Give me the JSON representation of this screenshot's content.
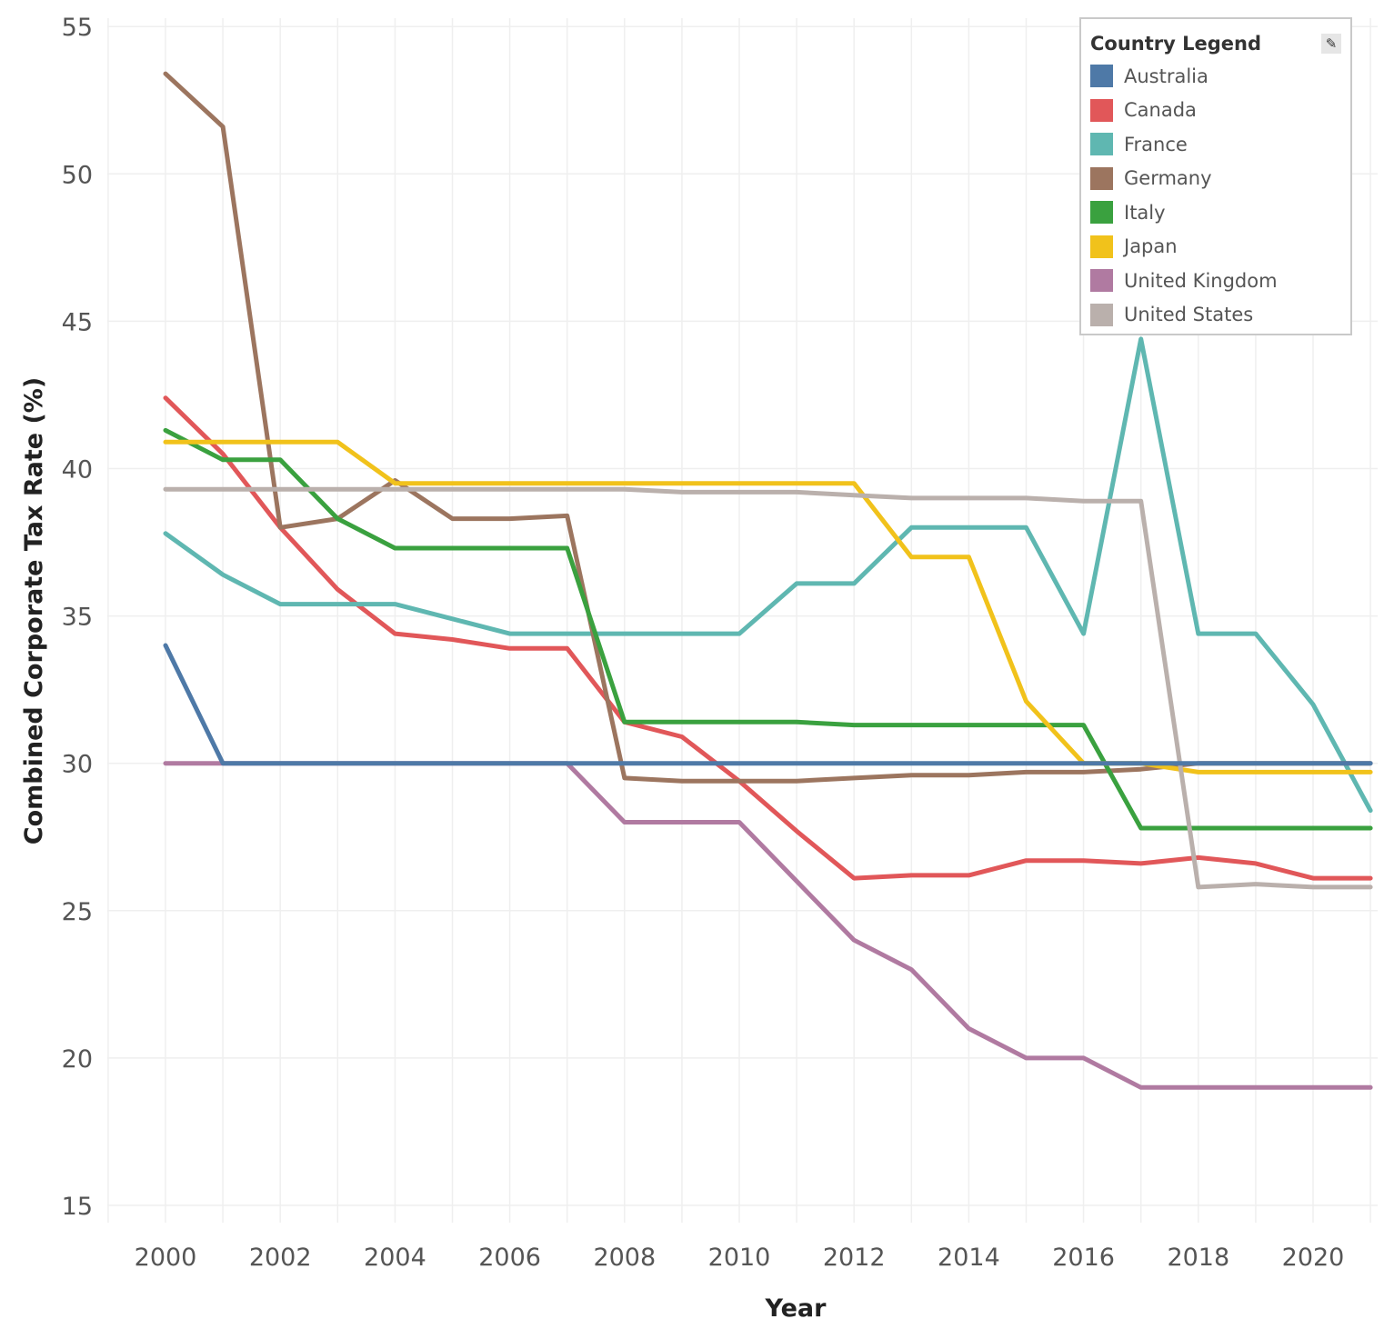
{
  "legend": {
    "title": "Country Legend",
    "edit_icon": "pencil-icon"
  },
  "chart_data": {
    "type": "line",
    "title": "",
    "xlabel": "Year",
    "ylabel": "Combined Corporate Tax Rate (%)",
    "xlim": [
      1999,
      2021
    ],
    "ylim": [
      15,
      55
    ],
    "xticks": [
      2000,
      2002,
      2004,
      2006,
      2008,
      2010,
      2012,
      2014,
      2016,
      2018,
      2020
    ],
    "yticks": [
      15,
      20,
      25,
      30,
      35,
      40,
      45,
      50,
      55
    ],
    "grid": true,
    "legend_position": "top-right",
    "x": [
      2000,
      2001,
      2002,
      2003,
      2004,
      2005,
      2006,
      2007,
      2008,
      2009,
      2010,
      2011,
      2012,
      2013,
      2014,
      2015,
      2016,
      2017,
      2018,
      2019,
      2020,
      2021
    ],
    "series": [
      {
        "name": "Australia",
        "color": "#4e79a7",
        "values": [
          34,
          30,
          30,
          30,
          30,
          30,
          30,
          30,
          30,
          30,
          30,
          30,
          30,
          30,
          30,
          30,
          30,
          30,
          30,
          30,
          30,
          30
        ]
      },
      {
        "name": "Canada",
        "color": "#e15759",
        "values": [
          42.4,
          40.5,
          38,
          35.9,
          34.4,
          34.2,
          33.9,
          33.9,
          31.4,
          30.9,
          29.4,
          27.7,
          26.1,
          26.2,
          26.2,
          26.7,
          26.7,
          26.6,
          26.8,
          26.6,
          26.1,
          26.1
        ]
      },
      {
        "name": "France",
        "color": "#5fb7b1",
        "values": [
          37.8,
          36.4,
          35.4,
          35.4,
          35.4,
          34.9,
          34.4,
          34.4,
          34.4,
          34.4,
          34.4,
          36.1,
          36.1,
          38,
          38,
          38,
          34.4,
          44.4,
          34.4,
          34.4,
          32,
          28.4
        ]
      },
      {
        "name": "Germany",
        "color": "#9c755f",
        "values": [
          53.4,
          51.6,
          38,
          38.3,
          39.6,
          38.3,
          38.3,
          38.4,
          29.5,
          29.4,
          29.4,
          29.4,
          29.5,
          29.6,
          29.6,
          29.7,
          29.7,
          29.8,
          30,
          30,
          30,
          30
        ]
      },
      {
        "name": "Italy",
        "color": "#3aa13f",
        "values": [
          41.3,
          40.3,
          40.3,
          38.3,
          37.3,
          37.3,
          37.3,
          37.3,
          31.4,
          31.4,
          31.4,
          31.4,
          31.3,
          31.3,
          31.3,
          31.3,
          31.3,
          27.8,
          27.8,
          27.8,
          27.8,
          27.8
        ]
      },
      {
        "name": "Japan",
        "color": "#f1c21b",
        "values": [
          40.9,
          40.9,
          40.9,
          40.9,
          39.5,
          39.5,
          39.5,
          39.5,
          39.5,
          39.5,
          39.5,
          39.5,
          39.5,
          37,
          37,
          32.1,
          30,
          30,
          29.7,
          29.7,
          29.7,
          29.7
        ]
      },
      {
        "name": "United Kingdom",
        "color": "#b07aa1",
        "values": [
          30,
          30,
          30,
          30,
          30,
          30,
          30,
          30,
          28,
          28,
          28,
          26,
          24,
          23,
          21,
          20,
          20,
          19,
          19,
          19,
          19,
          19
        ]
      },
      {
        "name": "United States",
        "color": "#bab0ac",
        "values": [
          39.3,
          39.3,
          39.3,
          39.3,
          39.3,
          39.3,
          39.3,
          39.3,
          39.3,
          39.2,
          39.2,
          39.2,
          39.1,
          39,
          39,
          39,
          38.9,
          38.9,
          25.8,
          25.9,
          25.8,
          25.8
        ]
      }
    ]
  }
}
